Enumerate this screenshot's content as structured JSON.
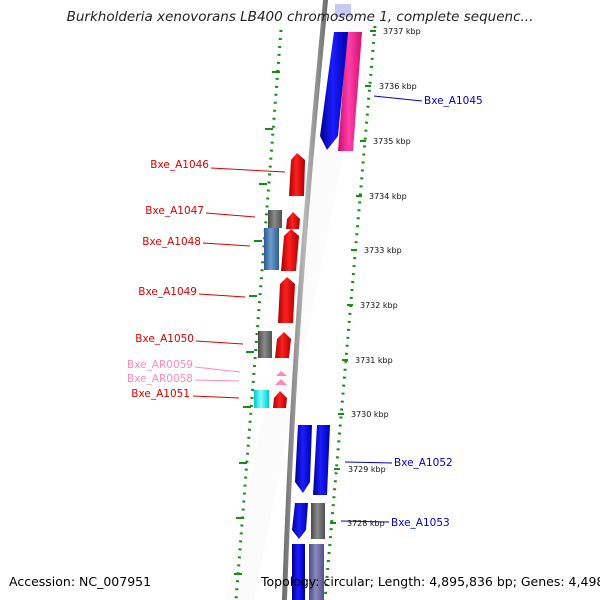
{
  "title": "Burkholderia xenovorans LB400 chromosome 1, complete sequenc...",
  "accession_text": "Accession: NC_007951",
  "topology_text": "Topology: circular; Length: 4,895,836 bp; Genes: 4,498",
  "kbp_ticks": [
    "3737 kbp",
    "3736 kbp",
    "3735 kbp",
    "3734 kbp",
    "3733 kbp",
    "3732 kbp",
    "3731 kbp",
    "3730 kbp",
    "3729 kbp",
    "3728 kbp"
  ],
  "gene_labels": {
    "A1045": "Bxe_A1045",
    "A1046": "Bxe_A1046",
    "A1047": "Bxe_A1047",
    "A1048": "Bxe_A1048",
    "A1049": "Bxe_A1049",
    "A1050": "Bxe_A1050",
    "AR0059": "Bxe_AR0059",
    "AR0058": "Bxe_AR0058",
    "A1051": "Bxe_A1051",
    "A1052": "Bxe_A1052",
    "A1053": "Bxe_A1053"
  },
  "colors": {
    "forward_cds": "#0000ee",
    "reverse_cds": "#ee0000",
    "pink_feature": "#ff3399",
    "rna": "#ff99cc",
    "gray_feature": "#707070",
    "blue_gray_feature": "#4a7fb5",
    "cyan_feature": "#00ffff",
    "ticks": "#1a8a1a",
    "backbone": "#888888"
  }
}
